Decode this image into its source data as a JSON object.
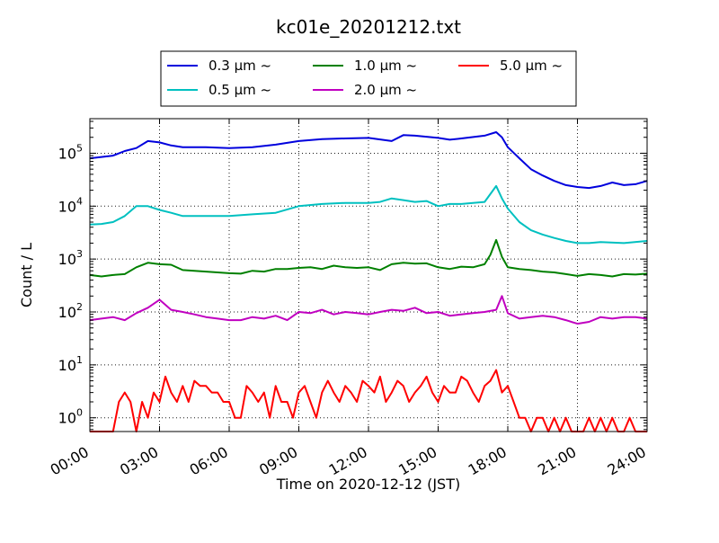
{
  "chart_data": {
    "type": "line",
    "title": "kc01e_20201212.txt",
    "xlabel": "Time on 2020-12-12 (JST)",
    "ylabel": "Count / L",
    "yscale": "log",
    "ylim": [
      0.55,
      450000
    ],
    "xlim": [
      "00:00",
      "24:00"
    ],
    "grid": true,
    "legend_position": "top-center",
    "x_ticks": [
      "00:00",
      "03:00",
      "06:00",
      "09:00",
      "12:00",
      "15:00",
      "18:00",
      "21:00",
      "24:00"
    ],
    "y_ticks": [
      "10^0",
      "10^1",
      "10^2",
      "10^3",
      "10^4",
      "10^5"
    ],
    "series": [
      {
        "name": "0.3 μm ~",
        "color": "#0000dd",
        "x": [
          "00:00",
          "01:00",
          "01:30",
          "02:00",
          "02:30",
          "03:00",
          "03:30",
          "04:00",
          "04:30",
          "05:00",
          "06:00",
          "07:00",
          "08:00",
          "09:00",
          "10:00",
          "11:00",
          "12:00",
          "13:00",
          "13:30",
          "14:00",
          "15:00",
          "15:30",
          "16:00",
          "17:00",
          "17:30",
          "17:45",
          "18:00",
          "18:30",
          "19:00",
          "19:30",
          "20:00",
          "20:30",
          "21:00",
          "21:30",
          "22:00",
          "22:30",
          "23:00",
          "23:30",
          "24:00"
        ],
        "values": [
          80000,
          90000,
          110000,
          125000,
          170000,
          160000,
          140000,
          130000,
          130000,
          130000,
          125000,
          130000,
          145000,
          170000,
          185000,
          190000,
          195000,
          170000,
          220000,
          215000,
          195000,
          180000,
          190000,
          215000,
          250000,
          200000,
          130000,
          80000,
          50000,
          38000,
          30000,
          25000,
          23000,
          22000,
          24000,
          28000,
          25000,
          26000,
          30000
        ]
      },
      {
        "name": "0.5 μm ~",
        "color": "#00c0c0",
        "x": [
          "00:00",
          "00:30",
          "01:00",
          "01:30",
          "02:00",
          "02:30",
          "03:00",
          "03:30",
          "04:00",
          "04:30",
          "05:00",
          "05:30",
          "06:00",
          "07:00",
          "08:00",
          "09:00",
          "10:00",
          "11:00",
          "12:00",
          "12:30",
          "13:00",
          "13:30",
          "14:00",
          "14:30",
          "15:00",
          "15:30",
          "16:00",
          "17:00",
          "17:30",
          "17:45",
          "18:00",
          "18:30",
          "19:00",
          "19:30",
          "20:00",
          "20:30",
          "21:00",
          "21:30",
          "22:00",
          "23:00",
          "24:00"
        ],
        "values": [
          4500,
          4600,
          5000,
          6500,
          10000,
          10000,
          8500,
          7500,
          6500,
          6500,
          6500,
          6500,
          6500,
          7000,
          7500,
          10000,
          11000,
          11500,
          11500,
          12000,
          14000,
          13000,
          12000,
          12500,
          10000,
          11000,
          11000,
          12000,
          24000,
          14000,
          9000,
          5000,
          3500,
          2900,
          2500,
          2200,
          2000,
          2000,
          2100,
          2000,
          2200
        ]
      },
      {
        "name": "1.0 μm ~",
        "color": "#008000",
        "x": [
          "00:00",
          "00:30",
          "01:00",
          "01:30",
          "02:00",
          "02:30",
          "03:00",
          "03:30",
          "04:00",
          "04:30",
          "05:00",
          "05:30",
          "06:00",
          "06:30",
          "07:00",
          "07:30",
          "08:00",
          "08:30",
          "09:00",
          "09:30",
          "10:00",
          "10:30",
          "11:00",
          "11:30",
          "12:00",
          "12:30",
          "13:00",
          "13:30",
          "14:00",
          "14:30",
          "15:00",
          "15:30",
          "16:00",
          "16:30",
          "17:00",
          "17:15",
          "17:30",
          "17:45",
          "18:00",
          "18:30",
          "19:00",
          "19:30",
          "20:00",
          "20:30",
          "21:00",
          "21:30",
          "22:00",
          "22:30",
          "23:00",
          "23:30",
          "24:00"
        ],
        "values": [
          500,
          470,
          500,
          520,
          700,
          850,
          800,
          780,
          620,
          600,
          580,
          560,
          540,
          530,
          600,
          580,
          650,
          650,
          680,
          700,
          650,
          750,
          700,
          680,
          700,
          620,
          800,
          850,
          820,
          830,
          700,
          650,
          720,
          700,
          800,
          1200,
          2300,
          1100,
          700,
          650,
          620,
          580,
          560,
          520,
          480,
          520,
          500,
          470,
          520,
          510,
          530
        ]
      },
      {
        "name": "2.0 μm ~",
        "color": "#c000c0",
        "x": [
          "00:00",
          "00:30",
          "01:00",
          "01:30",
          "02:00",
          "02:30",
          "03:00",
          "03:30",
          "04:00",
          "04:30",
          "05:00",
          "05:30",
          "06:00",
          "06:30",
          "07:00",
          "07:30",
          "08:00",
          "08:30",
          "09:00",
          "09:30",
          "10:00",
          "10:30",
          "11:00",
          "11:30",
          "12:00",
          "12:30",
          "13:00",
          "13:30",
          "14:00",
          "14:30",
          "15:00",
          "15:30",
          "16:00",
          "16:30",
          "17:00",
          "17:30",
          "17:45",
          "18:00",
          "18:30",
          "19:00",
          "19:30",
          "20:00",
          "20:30",
          "21:00",
          "21:30",
          "22:00",
          "22:30",
          "23:00",
          "23:30",
          "24:00"
        ],
        "values": [
          70,
          75,
          80,
          70,
          95,
          120,
          170,
          110,
          100,
          90,
          80,
          75,
          70,
          70,
          80,
          75,
          85,
          70,
          100,
          95,
          110,
          90,
          100,
          95,
          90,
          100,
          110,
          105,
          120,
          95,
          100,
          85,
          90,
          95,
          100,
          110,
          200,
          95,
          75,
          80,
          85,
          80,
          70,
          60,
          65,
          80,
          75,
          80,
          80,
          75
        ]
      },
      {
        "name": "5.0 μm ~",
        "color": "#ff0000",
        "x": [
          "00:00",
          "00:15",
          "00:30",
          "00:45",
          "01:00",
          "01:15",
          "01:30",
          "01:45",
          "02:00",
          "02:15",
          "02:30",
          "02:45",
          "03:00",
          "03:15",
          "03:30",
          "03:45",
          "04:00",
          "04:15",
          "04:30",
          "04:45",
          "05:00",
          "05:15",
          "05:30",
          "05:45",
          "06:00",
          "06:15",
          "06:30",
          "06:45",
          "07:00",
          "07:15",
          "07:30",
          "07:45",
          "08:00",
          "08:15",
          "08:30",
          "08:45",
          "09:00",
          "09:15",
          "09:30",
          "09:45",
          "10:00",
          "10:15",
          "10:30",
          "10:45",
          "11:00",
          "11:15",
          "11:30",
          "11:45",
          "12:00",
          "12:15",
          "12:30",
          "12:45",
          "13:00",
          "13:15",
          "13:30",
          "13:45",
          "14:00",
          "14:15",
          "14:30",
          "14:45",
          "15:00",
          "15:15",
          "15:30",
          "15:45",
          "16:00",
          "16:15",
          "16:30",
          "16:45",
          "17:00",
          "17:15",
          "17:30",
          "17:45",
          "18:00",
          "18:15",
          "18:30",
          "18:45",
          "19:00",
          "19:15",
          "19:30",
          "19:45",
          "20:00",
          "20:15",
          "20:30",
          "20:45",
          "21:00",
          "21:15",
          "21:30",
          "21:45",
          "22:00",
          "22:15",
          "22:30",
          "22:45",
          "23:00",
          "23:15",
          "23:30",
          "23:45",
          "24:00"
        ],
        "values": [
          null,
          null,
          null,
          null,
          null,
          2,
          3,
          2,
          null,
          2,
          1,
          3,
          2,
          6,
          3,
          2,
          4,
          2,
          5,
          4,
          4,
          3,
          3,
          2,
          2,
          1,
          1,
          4,
          3,
          2,
          3,
          1,
          4,
          2,
          2,
          1,
          3,
          4,
          2,
          1,
          3,
          5,
          3,
          2,
          4,
          3,
          2,
          5,
          4,
          3,
          6,
          2,
          3,
          5,
          4,
          2,
          3,
          4,
          6,
          3,
          2,
          4,
          3,
          3,
          6,
          5,
          3,
          2,
          4,
          5,
          8,
          3,
          4,
          2,
          1,
          1,
          null,
          1,
          1,
          null,
          1,
          null,
          1,
          null,
          null,
          null,
          1,
          null,
          1,
          null,
          1,
          null,
          null,
          1,
          null,
          null,
          null
        ]
      }
    ]
  }
}
